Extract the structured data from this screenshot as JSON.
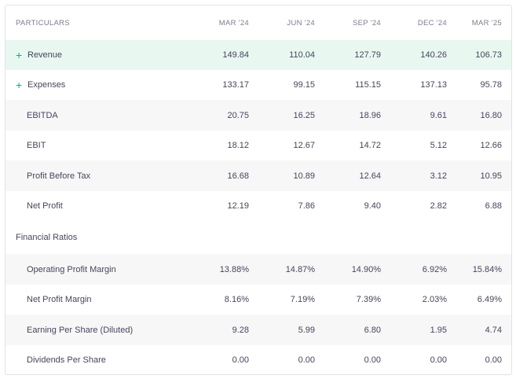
{
  "header": {
    "particulars": "PARTICULARS",
    "columns": [
      "MAR '24",
      "JUN '24",
      "SEP '24",
      "DEC '24",
      "MAR '25"
    ]
  },
  "rows": [
    {
      "label": "Revenue",
      "values": [
        "149.84",
        "110.04",
        "127.79",
        "140.26",
        "106.73"
      ],
      "expand": "+"
    },
    {
      "label": "Expenses",
      "values": [
        "133.17",
        "99.15",
        "115.15",
        "137.13",
        "95.78"
      ],
      "expand": "+"
    },
    {
      "label": "EBITDA",
      "values": [
        "20.75",
        "16.25",
        "18.96",
        "9.61",
        "16.80"
      ]
    },
    {
      "label": "EBIT",
      "values": [
        "18.12",
        "12.67",
        "14.72",
        "5.12",
        "12.66"
      ]
    },
    {
      "label": "Profit Before Tax",
      "values": [
        "16.68",
        "10.89",
        "12.64",
        "3.12",
        "10.95"
      ]
    },
    {
      "label": "Net Profit",
      "values": [
        "12.19",
        "7.86",
        "9.40",
        "2.82",
        "6.88"
      ]
    }
  ],
  "section_title": "Financial Ratios",
  "ratios": [
    {
      "label": "Operating Profit Margin",
      "values": [
        "13.88%",
        "14.87%",
        "14.90%",
        "6.92%",
        "15.84%"
      ]
    },
    {
      "label": "Net Profit Margin",
      "values": [
        "8.16%",
        "7.19%",
        "7.39%",
        "2.03%",
        "6.49%"
      ]
    },
    {
      "label": "Earning Per Share (Diluted)",
      "values": [
        "9.28",
        "5.99",
        "6.80",
        "1.95",
        "4.74"
      ]
    },
    {
      "label": "Dividends Per Share",
      "values": [
        "0.00",
        "0.00",
        "0.00",
        "0.00",
        "0.00"
      ]
    }
  ],
  "colors": {
    "accent": "#00b386",
    "highlight": "#e9f7f1",
    "alt_row": "#f7f7f8"
  }
}
